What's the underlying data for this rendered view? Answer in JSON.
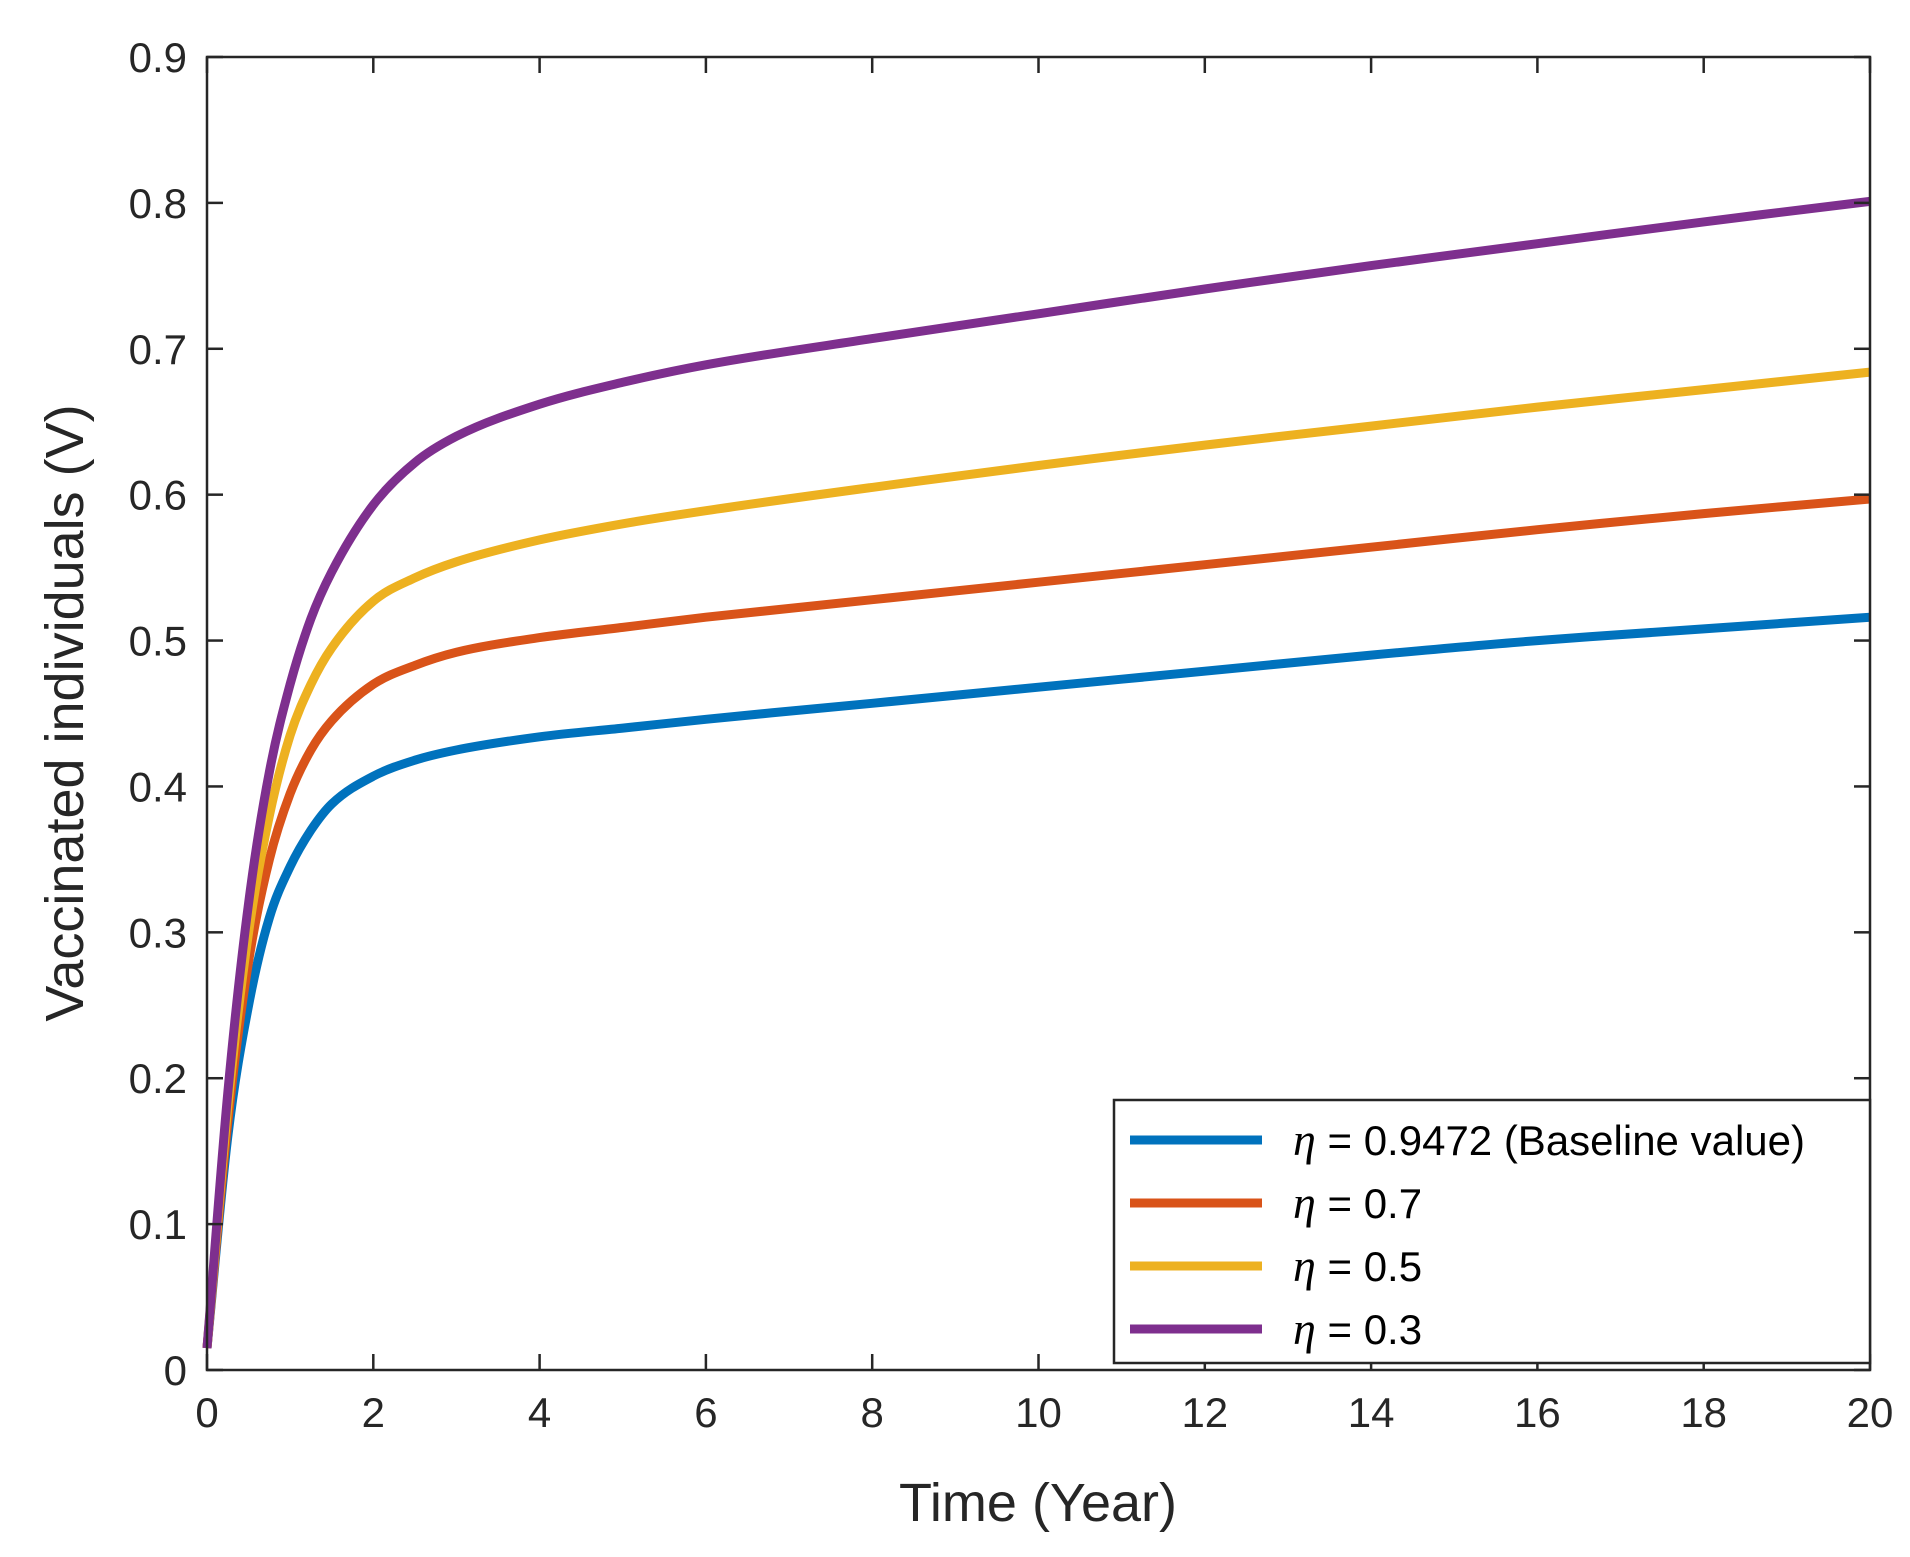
{
  "chart_data": {
    "type": "line",
    "title": "",
    "xlabel": "Time (Year)",
    "ylabel": "Vaccinated individuals (V)",
    "xlim": [
      0,
      20
    ],
    "ylim": [
      0,
      0.9
    ],
    "xticks": [
      0,
      2,
      4,
      6,
      8,
      10,
      12,
      14,
      16,
      18,
      20
    ],
    "yticks": [
      0,
      0.1,
      0.2,
      0.3,
      0.4,
      0.5,
      0.6,
      0.7,
      0.8,
      0.9
    ],
    "xtick_labels": [
      "0",
      "2",
      "4",
      "6",
      "8",
      "10",
      "12",
      "14",
      "16",
      "18",
      "20"
    ],
    "ytick_labels": [
      "0",
      "0.1",
      "0.2",
      "0.3",
      "0.4",
      "0.5",
      "0.6",
      "0.7",
      "0.8",
      "0.9"
    ],
    "grid": false,
    "legend_position": "bottom-right",
    "series": [
      {
        "name": "η = 0.9472 (Baseline value)",
        "legend_symbol": "η",
        "legend_text": " = 0.9472 (Baseline value)",
        "color": "#0072BD",
        "x": [
          0,
          0.25,
          0.5,
          0.75,
          1,
          1.25,
          1.5,
          2,
          2.5,
          3,
          4,
          5,
          6,
          8,
          10,
          12,
          14,
          16,
          18,
          20
        ],
        "y": [
          0.015,
          0.16,
          0.25,
          0.31,
          0.345,
          0.37,
          0.388,
          0.407,
          0.418,
          0.425,
          0.434,
          0.44,
          0.446,
          0.457,
          0.468,
          0.479,
          0.49,
          0.5,
          0.508,
          0.516
        ]
      },
      {
        "name": "η = 0.7",
        "legend_symbol": "η",
        "legend_text": " = 0.7",
        "color": "#D95319",
        "x": [
          0,
          0.25,
          0.5,
          0.75,
          1,
          1.25,
          1.5,
          2,
          2.5,
          3,
          4,
          5,
          6,
          8,
          10,
          12,
          14,
          16,
          18,
          20
        ],
        "y": [
          0.015,
          0.17,
          0.28,
          0.35,
          0.395,
          0.425,
          0.445,
          0.47,
          0.483,
          0.492,
          0.502,
          0.509,
          0.516,
          0.528,
          0.54,
          0.552,
          0.564,
          0.576,
          0.587,
          0.597
        ]
      },
      {
        "name": "η = 0.5",
        "legend_symbol": "η",
        "legend_text": " = 0.5",
        "color": "#EDB120",
        "x": [
          0,
          0.25,
          0.5,
          0.75,
          1,
          1.25,
          1.5,
          2,
          2.5,
          3,
          4,
          5,
          6,
          8,
          10,
          12,
          14,
          16,
          18,
          20
        ],
        "y": [
          0.015,
          0.18,
          0.3,
          0.38,
          0.435,
          0.47,
          0.495,
          0.527,
          0.543,
          0.554,
          0.569,
          0.58,
          0.589,
          0.605,
          0.62,
          0.634,
          0.647,
          0.66,
          0.672,
          0.684
        ]
      },
      {
        "name": "η = 0.3",
        "legend_symbol": "η",
        "legend_text": " = 0.3",
        "color": "#7E2F8E",
        "x": [
          0,
          0.25,
          0.5,
          0.75,
          1,
          1.25,
          1.5,
          2,
          2.5,
          3,
          4,
          5,
          6,
          8,
          10,
          12,
          14,
          16,
          18,
          20
        ],
        "y": [
          0.015,
          0.19,
          0.32,
          0.41,
          0.47,
          0.515,
          0.547,
          0.593,
          0.622,
          0.64,
          0.662,
          0.677,
          0.689,
          0.707,
          0.724,
          0.741,
          0.757,
          0.772,
          0.787,
          0.801
        ]
      }
    ]
  }
}
